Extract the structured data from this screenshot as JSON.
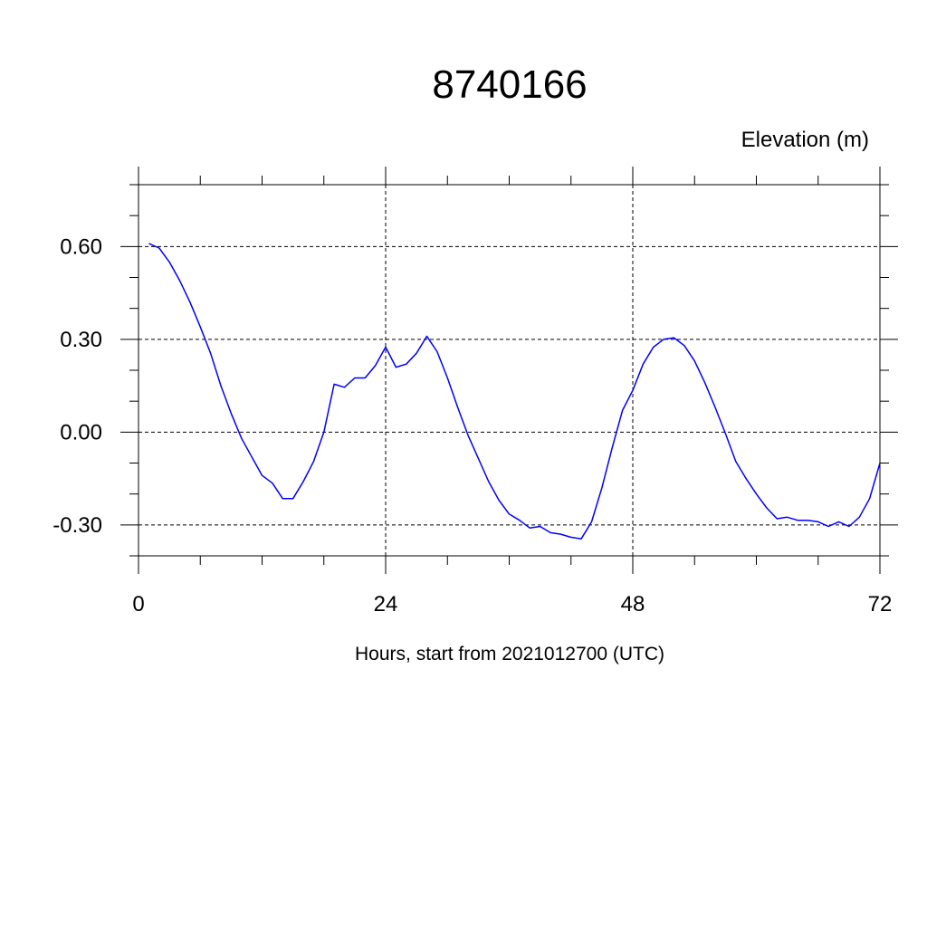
{
  "chart_data": {
    "type": "line",
    "title": "8740166",
    "ylabel": "Elevation (m)",
    "xlabel": "Hours, start from 2021012700 (UTC)",
    "xlim": [
      0,
      72
    ],
    "ylim": [
      -0.4,
      0.8
    ],
    "x_ticks": [
      0,
      24,
      48,
      72
    ],
    "x_tick_labels": [
      "0",
      "24",
      "48",
      "72"
    ],
    "y_ticks": [
      -0.3,
      0.0,
      0.3,
      0.6
    ],
    "y_tick_labels": [
      "-0.30",
      "0.00",
      "0.30",
      "0.60"
    ],
    "grid": true,
    "series": [
      {
        "color": "#0000ff",
        "x": [
          1,
          2,
          3,
          4,
          5,
          6,
          7,
          8,
          9,
          10,
          11,
          12,
          13,
          14,
          15,
          16,
          17,
          18,
          19,
          20,
          21,
          22,
          23,
          24,
          25,
          26,
          27,
          28,
          29,
          30,
          31,
          32,
          33,
          34,
          35,
          36,
          37,
          38,
          39,
          40,
          41,
          42,
          43,
          44,
          45,
          46,
          47,
          48,
          49,
          50,
          51,
          52,
          53,
          54,
          55,
          56,
          57,
          58,
          59,
          60,
          61,
          62,
          63,
          64,
          65,
          66,
          67,
          68,
          69,
          70,
          71,
          72
        ],
        "y": [
          0.61,
          0.595,
          0.55,
          0.49,
          0.42,
          0.34,
          0.255,
          0.15,
          0.06,
          -0.02,
          -0.08,
          -0.14,
          -0.165,
          -0.215,
          -0.215,
          -0.16,
          -0.095,
          0.0,
          0.155,
          0.145,
          0.175,
          0.175,
          0.215,
          0.275,
          0.21,
          0.22,
          0.255,
          0.31,
          0.26,
          0.175,
          0.08,
          -0.01,
          -0.085,
          -0.16,
          -0.22,
          -0.265,
          -0.285,
          -0.31,
          -0.305,
          -0.325,
          -0.33,
          -0.34,
          -0.345,
          -0.29,
          -0.18,
          -0.05,
          0.07,
          0.135,
          0.22,
          0.275,
          0.3,
          0.305,
          0.28,
          0.23,
          0.16,
          0.08,
          -0.005,
          -0.095,
          -0.15,
          -0.2,
          -0.245,
          -0.28,
          -0.275,
          -0.285,
          -0.285,
          -0.29,
          -0.305,
          -0.29,
          -0.305,
          -0.275,
          -0.215,
          -0.1
        ]
      }
    ]
  }
}
